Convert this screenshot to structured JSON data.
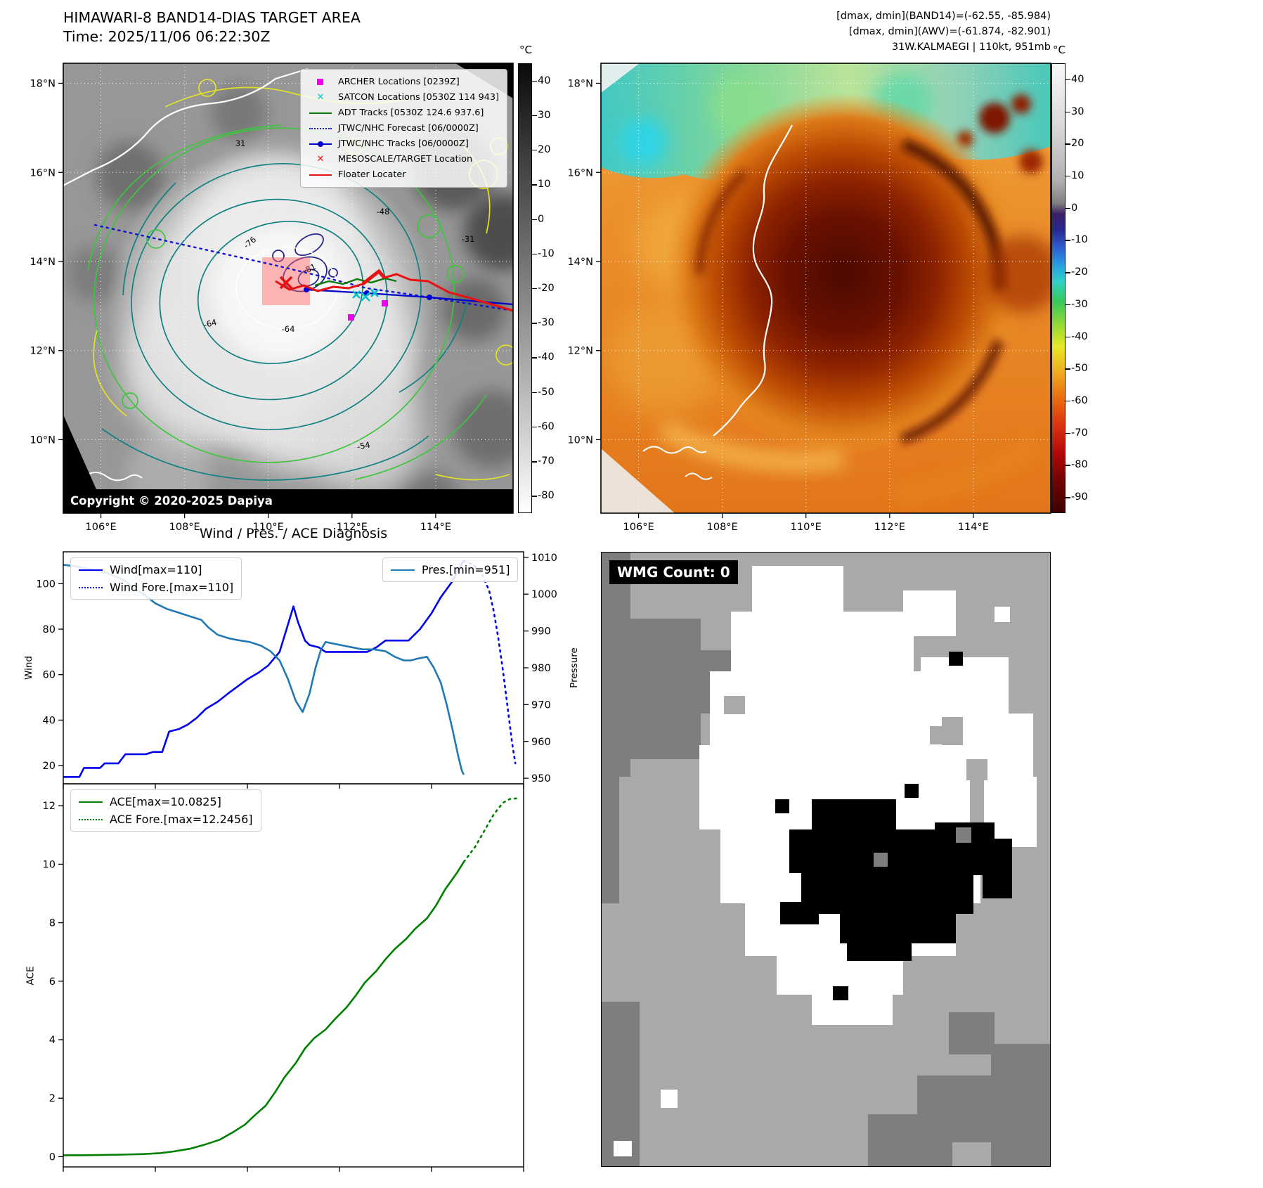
{
  "band14": {
    "title": "HIMAWARI-8 BAND14-DIAS TARGET AREA",
    "time_label": "Time: 2025/11/06 06:22:30Z",
    "copyright": "Copyright © 2020-2025 Dapiya",
    "legend": [
      {
        "label": "ARCHER Locations [0239Z]",
        "marker": "square",
        "color": "#f000f0"
      },
      {
        "label": "SATCON Locations [0530Z 114 943]",
        "marker": "x",
        "color": "#00c3cb"
      },
      {
        "label": "ADT Tracks [0530Z 124.6 937.6]",
        "marker": "line",
        "color": "#077a07"
      },
      {
        "label": "JTWC/NHC Forecast [06/0000Z]",
        "marker": "dotted-line",
        "color": "#1212cf"
      },
      {
        "label": "JTWC/NHC Tracks [06/0000Z]",
        "marker": "line-dot",
        "color": "#0000cd"
      },
      {
        "label": "MESOSCALE/TARGET Location",
        "marker": "x",
        "color": "#e81212"
      },
      {
        "label": "Floater Locater",
        "marker": "line",
        "color": "#e81212"
      }
    ],
    "contour_labels": [
      "31",
      "-31",
      "-76",
      "-81",
      "-64",
      "-64",
      "-48",
      "-54"
    ]
  },
  "awv": {
    "header_lines": [
      "[dmax, dmin](BAND14)=(-62.55, -85.984)",
      "[dmax, dmin](AWV)=(-61.874, -82.901)",
      "31W.KALMAEGI | 110kt, 951mb"
    ]
  },
  "map_axes": {
    "x_ticks": [
      "106°E",
      "108°E",
      "110°E",
      "112°E",
      "114°E"
    ],
    "y_ticks": [
      "18°N",
      "16°N",
      "14°N",
      "12°N",
      "10°N"
    ]
  },
  "colorbars": {
    "band14": {
      "unit": "°C",
      "range": [
        45,
        -85
      ],
      "ticks": [
        40,
        30,
        20,
        10,
        0,
        -10,
        -20,
        -30,
        -40,
        -50,
        -60,
        -70,
        -80
      ]
    },
    "awv": {
      "unit": "°C",
      "range": [
        45,
        -95
      ],
      "ticks": [
        40,
        30,
        20,
        10,
        0,
        -10,
        -20,
        -30,
        -40,
        -50,
        -60,
        -70,
        -80,
        -90
      ]
    }
  },
  "diagnosis": {
    "title": "Wind / Pres. / ACE Diagnosis"
  },
  "wmg": {
    "count_label": "WMG Count: 0"
  },
  "chart_data": [
    {
      "type": "line",
      "title": "Wind / Pres. / ACE Diagnosis (upper panel)",
      "x_range": [
        0,
        100
      ],
      "left_axis": {
        "label": "Wind",
        "range": [
          12,
          114
        ],
        "ticks": [
          20,
          40,
          60,
          80,
          100
        ]
      },
      "right_axis": {
        "label": "Pressure",
        "range": [
          948.5,
          1011.5
        ],
        "ticks": [
          950,
          960,
          970,
          980,
          990,
          1000,
          1010
        ]
      },
      "legend": [
        "Wind[max=110]",
        "Wind Fore.[max=110]",
        "Pres.[min=951]"
      ],
      "series": [
        {
          "name": "Wind",
          "axis": "left",
          "color": "#0000ee",
          "dash": false,
          "points": [
            [
              0,
              15
            ],
            [
              3.5,
              15
            ],
            [
              4.5,
              19
            ],
            [
              8,
              19
            ],
            [
              9,
              21
            ],
            [
              12,
              21
            ],
            [
              13.5,
              25
            ],
            [
              18,
              25
            ],
            [
              19.5,
              26
            ],
            [
              21.5,
              26
            ],
            [
              23,
              35
            ],
            [
              25,
              36
            ],
            [
              27,
              38
            ],
            [
              29,
              41
            ],
            [
              31,
              45
            ],
            [
              33.5,
              48
            ],
            [
              36,
              52
            ],
            [
              38,
              55
            ],
            [
              40,
              58
            ],
            [
              42.5,
              61
            ],
            [
              44.5,
              64
            ],
            [
              47,
              70
            ],
            [
              48.5,
              80
            ],
            [
              50,
              90
            ],
            [
              51,
              83
            ],
            [
              52.5,
              75
            ],
            [
              53.5,
              73
            ],
            [
              55.5,
              72
            ],
            [
              57,
              70
            ],
            [
              60,
              70
            ],
            [
              63.5,
              70
            ],
            [
              66,
              70
            ],
            [
              68,
              72
            ],
            [
              70,
              75
            ],
            [
              72.5,
              75
            ],
            [
              75,
              75
            ],
            [
              77.5,
              80
            ],
            [
              80,
              87
            ],
            [
              82,
              94
            ],
            [
              84.5,
              101
            ],
            [
              86,
              107
            ],
            [
              87,
              110
            ]
          ]
        },
        {
          "name": "Wind Fore.",
          "axis": "left",
          "color": "#0000ee",
          "dash": true,
          "points": [
            [
              87,
              110
            ],
            [
              89,
              108.5
            ],
            [
              91,
              104
            ],
            [
              92.5,
              97
            ],
            [
              93.5,
              88
            ],
            [
              94.5,
              76
            ],
            [
              95.5,
              62
            ],
            [
              96.5,
              46
            ],
            [
              97.5,
              30
            ],
            [
              98.2,
              21
            ]
          ]
        },
        {
          "name": "Pres.",
          "axis": "right",
          "color": "#2078b4",
          "dash": false,
          "points": [
            [
              0,
              1008
            ],
            [
              3,
              1007.5
            ],
            [
              7,
              1006.5
            ],
            [
              10,
              1005.5
            ],
            [
              13,
              1004
            ],
            [
              15.5,
              1001.5
            ],
            [
              18,
              999.5
            ],
            [
              20,
              997.5
            ],
            [
              22.5,
              996
            ],
            [
              25,
              995
            ],
            [
              27.5,
              994
            ],
            [
              30,
              993
            ],
            [
              31.5,
              991
            ],
            [
              33.5,
              989
            ],
            [
              36,
              988
            ],
            [
              38,
              987.5
            ],
            [
              40.5,
              987
            ],
            [
              43,
              986
            ],
            [
              45,
              984.5
            ],
            [
              47,
              982
            ],
            [
              48.8,
              977
            ],
            [
              50.5,
              971
            ],
            [
              52,
              968
            ],
            [
              53.5,
              973
            ],
            [
              54.8,
              980
            ],
            [
              56,
              985
            ],
            [
              57,
              987
            ],
            [
              59,
              986.5
            ],
            [
              61,
              986
            ],
            [
              63,
              985.5
            ],
            [
              65,
              985
            ],
            [
              67.5,
              985
            ],
            [
              70,
              984.5
            ],
            [
              72,
              983
            ],
            [
              74,
              982
            ],
            [
              75.5,
              982
            ],
            [
              77,
              982.5
            ],
            [
              79,
              983
            ],
            [
              80.5,
              980
            ],
            [
              82,
              976
            ],
            [
              83.3,
              970
            ],
            [
              84.6,
              963
            ],
            [
              85.8,
              956
            ],
            [
              86.6,
              952
            ],
            [
              87,
              951
            ]
          ]
        }
      ]
    },
    {
      "type": "line",
      "title": "Wind / Pres. / ACE Diagnosis (lower panel)",
      "x_range": [
        0,
        100
      ],
      "left_axis": {
        "label": "ACE",
        "range": [
          -0.35,
          12.75
        ],
        "ticks": [
          0,
          2,
          4,
          6,
          8,
          10,
          12
        ]
      },
      "legend": [
        "ACE[max=10.0825]",
        "ACE Fore.[max=12.2456]"
      ],
      "series": [
        {
          "name": "ACE",
          "axis": "left",
          "color": "#008000",
          "dash": false,
          "points": [
            [
              0,
              0.05
            ],
            [
              4.5,
              0.05
            ],
            [
              9,
              0.06
            ],
            [
              13,
              0.07
            ],
            [
              17.5,
              0.09
            ],
            [
              21,
              0.12
            ],
            [
              24,
              0.18
            ],
            [
              27.5,
              0.27
            ],
            [
              30.5,
              0.4
            ],
            [
              34,
              0.58
            ],
            [
              37,
              0.85
            ],
            [
              39.5,
              1.1
            ],
            [
              41.5,
              1.4
            ],
            [
              44,
              1.75
            ],
            [
              46,
              2.2
            ],
            [
              48,
              2.7
            ],
            [
              50.5,
              3.2
            ],
            [
              52.5,
              3.7
            ],
            [
              54.5,
              4.05
            ],
            [
              57,
              4.35
            ],
            [
              59,
              4.7
            ],
            [
              61.5,
              5.1
            ],
            [
              63.5,
              5.5
            ],
            [
              65.5,
              5.95
            ],
            [
              68,
              6.35
            ],
            [
              70,
              6.75
            ],
            [
              72,
              7.1
            ],
            [
              74.5,
              7.45
            ],
            [
              76.5,
              7.8
            ],
            [
              79,
              8.15
            ],
            [
              81,
              8.6
            ],
            [
              83,
              9.15
            ],
            [
              85.5,
              9.7
            ],
            [
              87,
              10.08
            ]
          ]
        },
        {
          "name": "ACE Fore.",
          "axis": "left",
          "color": "#008000",
          "dash": true,
          "points": [
            [
              87,
              10.08
            ],
            [
              89.5,
              10.6
            ],
            [
              91.5,
              11.15
            ],
            [
              93.5,
              11.7
            ],
            [
              95.5,
              12.1
            ],
            [
              97,
              12.23
            ],
            [
              98.5,
              12.25
            ]
          ]
        }
      ]
    }
  ]
}
